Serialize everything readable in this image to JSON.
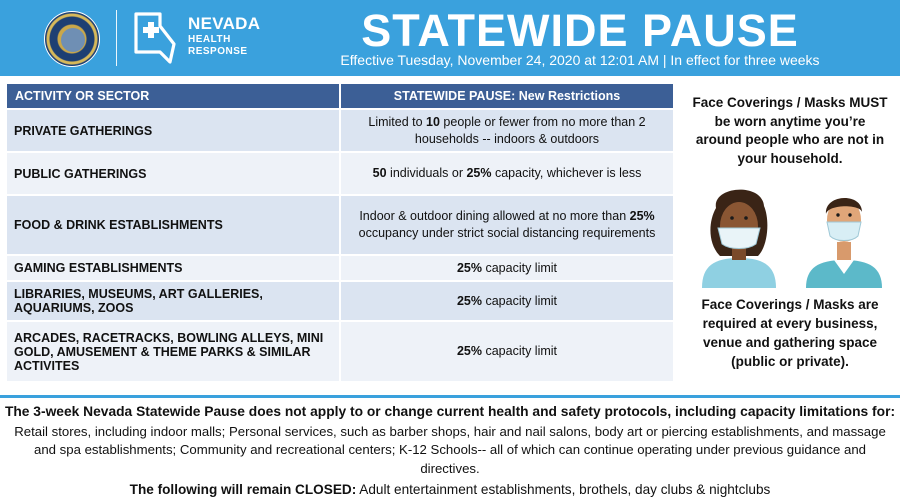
{
  "header": {
    "brand_line1": "NEVADA",
    "brand_line2": "HEALTH",
    "brand_line3": "RESPONSE",
    "title": "STATEWIDE PAUSE",
    "subtitle": "Effective Tuesday, November 24, 2020 at 12:01 AM | In effect for three weeks",
    "colors": {
      "header_bg": "#3aa1dd",
      "table_header_bg": "#3c5f96"
    }
  },
  "table": {
    "headers": [
      "ACTIVITY OR SECTOR",
      "STATEWIDE PAUSE: New Restrictions"
    ],
    "rows": [
      {
        "sector": "PRIVATE GATHERINGS",
        "r_pre": "Limited to ",
        "r_bold": "10",
        "r_post": " people or fewer from no more than 2 households -- indoors & outdoors"
      },
      {
        "sector": "PUBLIC GATHERINGS",
        "r_bold": "50",
        "r_mid": " individuals or ",
        "r_bold2": "25%",
        "r_post": " capacity, whichever is less"
      },
      {
        "sector": "FOOD & DRINK ESTABLISHMENTS",
        "r_pre": "Indoor & outdoor dining allowed at no more than ",
        "r_bold": "25%",
        "r_post": " occupancy under strict social distancing requirements"
      },
      {
        "sector": "GAMING ESTABLISHMENTS",
        "r_bold": "25%",
        "r_post": " capacity limit"
      },
      {
        "sector": "LIBRARIES, MUSEUMS, ART GALLERIES, AQUARIUMS, ZOOS",
        "r_bold": "25%",
        "r_post": " capacity limit"
      },
      {
        "sector": "ARCADES, RACETRACKS, BOWLING ALLEYS, MINI GOLD, AMUSEMENT & THEME PARKS & SIMILAR ACTIVITES",
        "r_bold": "25%",
        "r_post": " capacity limit"
      }
    ]
  },
  "side": {
    "top_text": "Face Coverings / Masks MUST be worn anytime you’re around people who are not in your household.",
    "bottom_text": "Face Coverings / Masks are required at every business, venue and gathering space (public or private).",
    "icons": [
      "woman-with-mask-icon",
      "man-with-mask-icon"
    ]
  },
  "footer": {
    "bold_line": "The 3-week Nevada Statewide Pause does not apply to or change current health and safety protocols, including capacity limitations for:",
    "body": "Retail stores, including indoor malls; Personal services, such as barber shops, hair and nail salons, body art or piercing establishments, and massage and spa establishments; Community and recreational centers; K-12 Schools-- all of which can continue operating under previous guidance and directives.",
    "closed_lead": "The following will remain CLOSED:",
    "closed_text": " Adult entertainment establishments, brothels, day clubs & nightclubs"
  }
}
